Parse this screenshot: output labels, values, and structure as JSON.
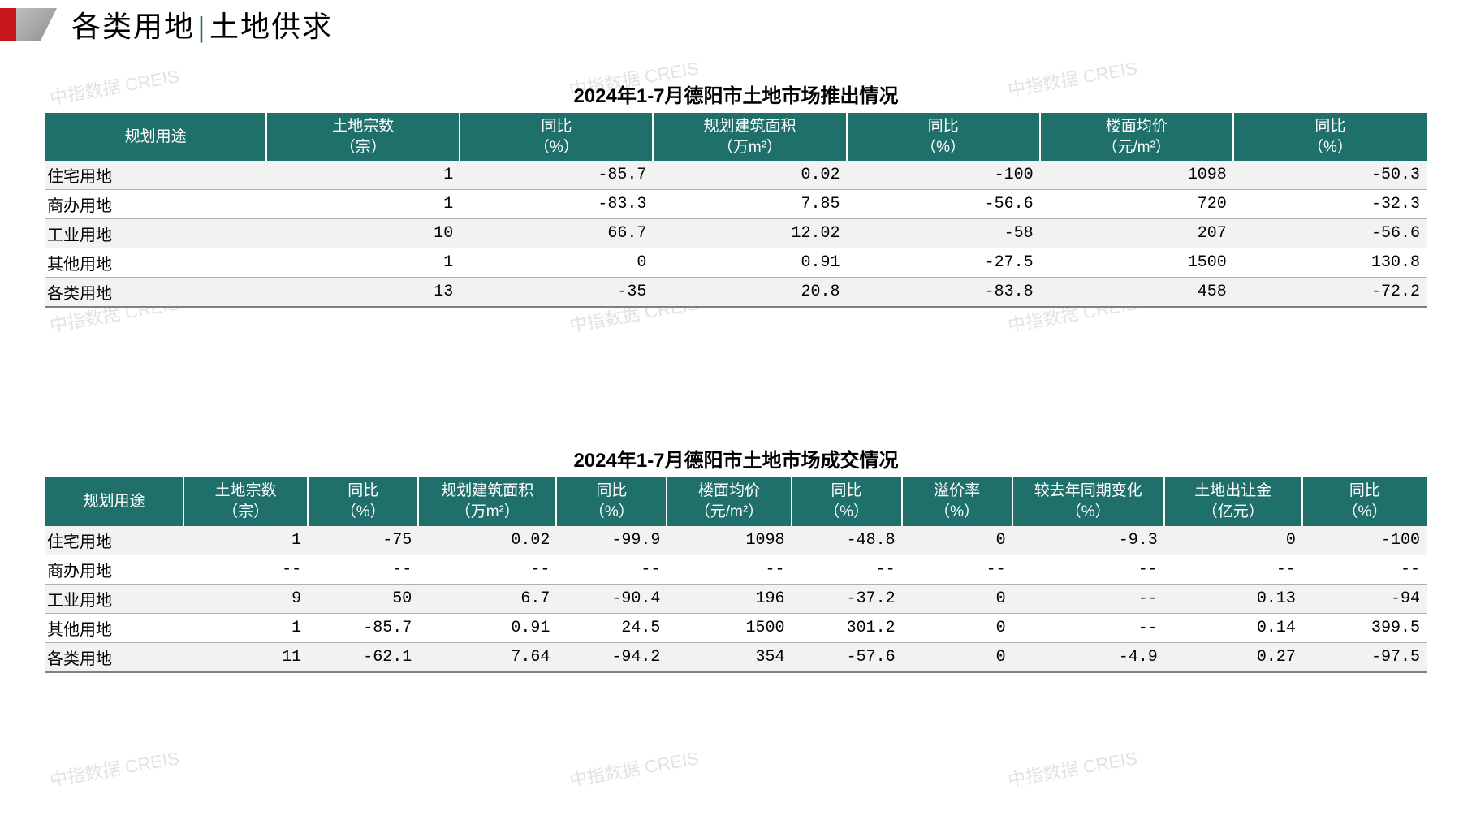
{
  "header": {
    "title_l": "各类用地",
    "title_r": "土地供求"
  },
  "watermark_text": "中指数据 CREIS",
  "colors": {
    "header_bg": "#1f6f6a",
    "header_text": "#ffffff",
    "row_stripe": "#f2f2f2",
    "row_border": "#b0b0b0",
    "logo_red": "#c8161d",
    "watermark": "#dcdcdc",
    "page_bg": "#ffffff"
  },
  "table1": {
    "title": "2024年1-7月德阳市土地市场推出情况",
    "columns": [
      {
        "l1": "规划用途",
        "l2": ""
      },
      {
        "l1": "土地宗数",
        "l2": "（宗）"
      },
      {
        "l1": "同比",
        "l2": "（%）"
      },
      {
        "l1": "规划建筑面积",
        "l2": "（万m²）"
      },
      {
        "l1": "同比",
        "l2": "（%）"
      },
      {
        "l1": "楼面均价",
        "l2": "（元/m²）"
      },
      {
        "l1": "同比",
        "l2": "（%）"
      }
    ],
    "rows": [
      [
        "住宅用地",
        "1",
        "-85.7",
        "0.02",
        "-100",
        "1098",
        "-50.3"
      ],
      [
        "商办用地",
        "1",
        "-83.3",
        "7.85",
        "-56.6",
        "720",
        "-32.3"
      ],
      [
        "工业用地",
        "10",
        "66.7",
        "12.02",
        "-58",
        "207",
        "-56.6"
      ],
      [
        "其他用地",
        "1",
        "0",
        "0.91",
        "-27.5",
        "1500",
        "130.8"
      ],
      [
        "各类用地",
        "13",
        "-35",
        "20.8",
        "-83.8",
        "458",
        "-72.2"
      ]
    ]
  },
  "table2": {
    "title": "2024年1-7月德阳市土地市场成交情况",
    "columns": [
      {
        "l1": "规划用途",
        "l2": ""
      },
      {
        "l1": "土地宗数",
        "l2": "（宗）"
      },
      {
        "l1": "同比",
        "l2": "（%）"
      },
      {
        "l1": "规划建筑面积",
        "l2": "（万m²）"
      },
      {
        "l1": "同比",
        "l2": "（%）"
      },
      {
        "l1": "楼面均价",
        "l2": "（元/m²）"
      },
      {
        "l1": "同比",
        "l2": "（%）"
      },
      {
        "l1": "溢价率",
        "l2": "（%）"
      },
      {
        "l1": "较去年同期变化",
        "l2": "（%）"
      },
      {
        "l1": "土地出让金",
        "l2": "（亿元）"
      },
      {
        "l1": "同比",
        "l2": "（%）"
      }
    ],
    "rows": [
      [
        "住宅用地",
        "1",
        "-75",
        "0.02",
        "-99.9",
        "1098",
        "-48.8",
        "0",
        "-9.3",
        "0",
        "-100"
      ],
      [
        "商办用地",
        "--",
        "--",
        "--",
        "--",
        "--",
        "--",
        "--",
        "--",
        "--",
        "--"
      ],
      [
        "工业用地",
        "9",
        "50",
        "6.7",
        "-90.4",
        "196",
        "-37.2",
        "0",
        "--",
        "0.13",
        "-94"
      ],
      [
        "其他用地",
        "1",
        "-85.7",
        "0.91",
        "24.5",
        "1500",
        "301.2",
        "0",
        "--",
        "0.14",
        "399.5"
      ],
      [
        "各类用地",
        "11",
        "-62.1",
        "7.64",
        "-94.2",
        "354",
        "-57.6",
        "0",
        "-4.9",
        "0.27",
        "-97.5"
      ]
    ]
  }
}
